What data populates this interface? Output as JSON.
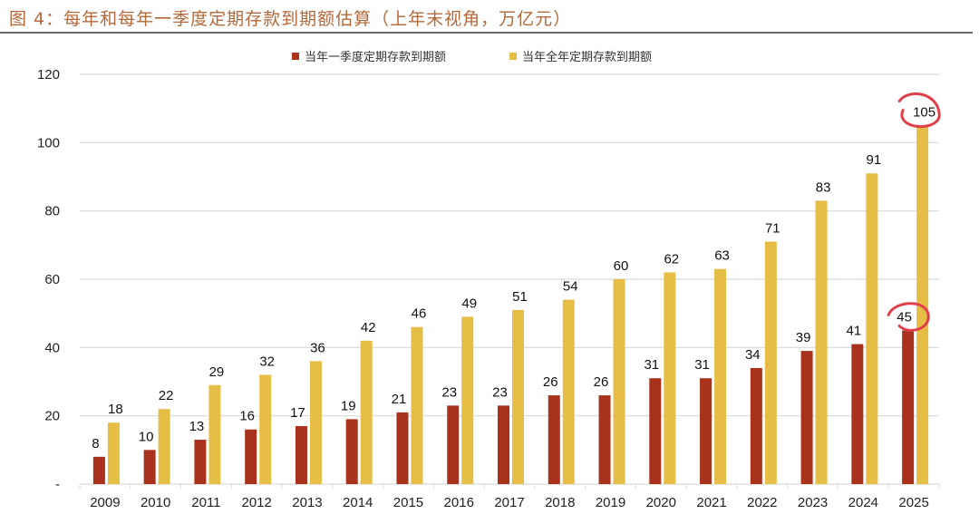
{
  "title": "图 4：每年和每年一季度定期存款到期额估算（上年末视角，万亿元）",
  "colors": {
    "title": "#b5683a",
    "q1": "#a8321b",
    "full": "#e6be46",
    "grid": "#d9d9d9",
    "annotation": "#e0404a"
  },
  "chart_data": {
    "type": "bar",
    "title": "每年和每年一季度定期存款到期额估算（上年末视角，万亿元）",
    "xlabel": "",
    "ylabel": "",
    "ylim": [
      0,
      120
    ],
    "yticks": [
      0,
      20,
      40,
      60,
      80,
      100,
      120
    ],
    "ytick_labels": [
      "-",
      "20",
      "40",
      "60",
      "80",
      "100",
      "120"
    ],
    "grid": true,
    "legend_position": "top-center",
    "categories": [
      "2009",
      "2010",
      "2011",
      "2012",
      "2013",
      "2014",
      "2015",
      "2016",
      "2017",
      "2018",
      "2019",
      "2020",
      "2021",
      "2022",
      "2023",
      "2024",
      "2025"
    ],
    "series": [
      {
        "name": "当年一季度定期存款到期额",
        "color": "#a8321b",
        "values": [
          8,
          10,
          13,
          16,
          17,
          19,
          21,
          23,
          23,
          26,
          26,
          31,
          31,
          34,
          39,
          41,
          45
        ]
      },
      {
        "name": "当年全年定期存款到期额",
        "color": "#e6be46",
        "values": [
          18,
          22,
          29,
          32,
          36,
          42,
          46,
          49,
          51,
          54,
          60,
          62,
          63,
          71,
          83,
          91,
          105
        ]
      }
    ],
    "annotations": [
      {
        "type": "hand-drawn circle",
        "target": "2025 全年 label",
        "value": 105
      },
      {
        "type": "hand-drawn circle",
        "target": "2025 一季度 label",
        "value": 45
      }
    ]
  }
}
